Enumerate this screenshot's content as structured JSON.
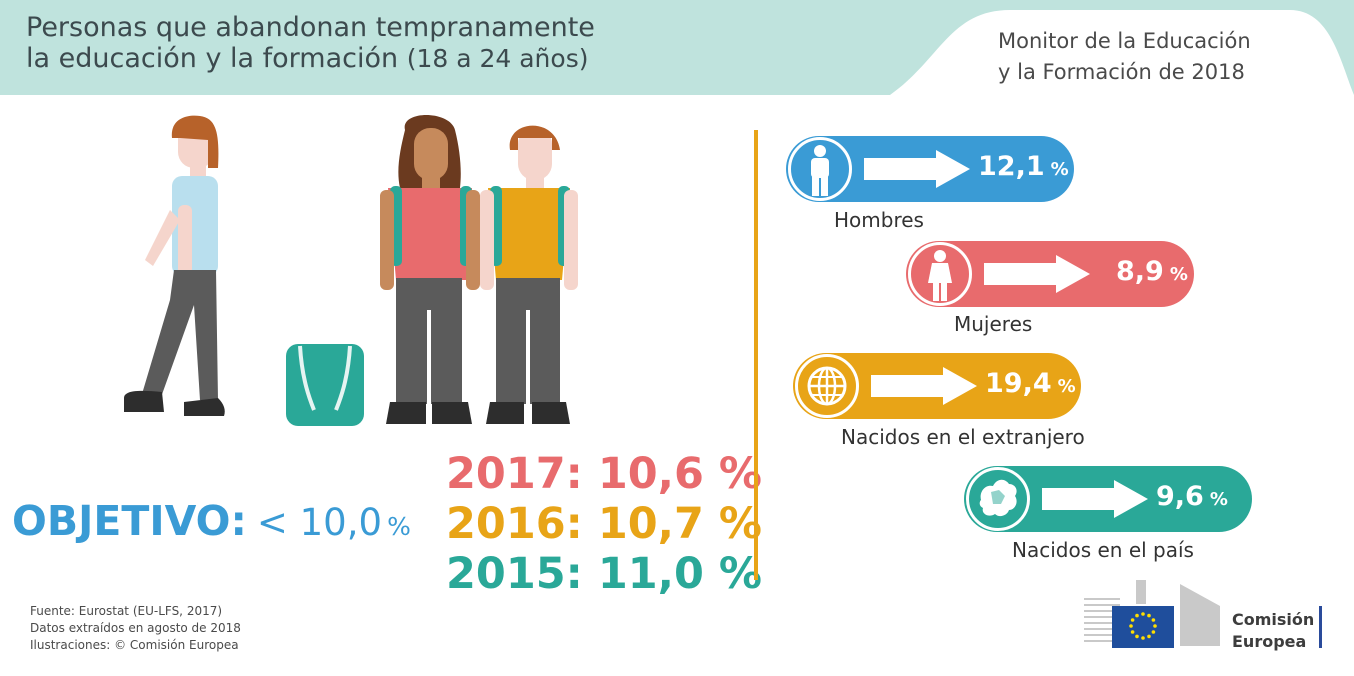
{
  "header": {
    "title_line1": "Personas que abandonan tempranamente",
    "title_line2": "la educación y la formación",
    "title_ages": "(18 a 24 años)",
    "monitor_line1": "Monitor de la Educación",
    "monitor_line2": "y la Formación de 2018"
  },
  "target": {
    "label": "OBJETIVO:",
    "value": "< 10,0",
    "unit": "%"
  },
  "years": [
    {
      "text": "2017: 10,6 %",
      "color": "#e86b6d"
    },
    {
      "text": "2016: 10,7 %",
      "color": "#e8a417"
    },
    {
      "text": "2015: 11,0 %",
      "color": "#2aa898"
    }
  ],
  "stats": [
    {
      "value": "12,1",
      "unit": "%",
      "label": "Hombres",
      "color": "#3a9bd5",
      "icon": "man-icon"
    },
    {
      "value": "8,9",
      "unit": "%",
      "label": "Mujeres",
      "color": "#e86b6d",
      "icon": "woman-icon"
    },
    {
      "value": "19,4",
      "unit": "%",
      "label": "Nacidos en el extranjero",
      "color": "#e8a417",
      "icon": "globe-icon"
    },
    {
      "value": "9,6",
      "unit": "%",
      "label": "Nacidos en el país",
      "color": "#2aa898",
      "icon": "europe-map-icon"
    }
  ],
  "source": {
    "line1": "Fuente: Eurostat (EU-LFS, 2017)",
    "line2": "Datos extraídos en agosto de 2018",
    "line3": "Ilustraciones: © Comisión Europea"
  },
  "logo": {
    "line1": "Comisión",
    "line2": "Europea"
  },
  "colors": {
    "header_band": "#bfe3dd",
    "blue": "#3a9bd5",
    "red": "#e86b6d",
    "orange": "#e8a417",
    "teal": "#2aa898",
    "eu_blue": "#1f4e9c",
    "eu_star": "#ffde00"
  }
}
